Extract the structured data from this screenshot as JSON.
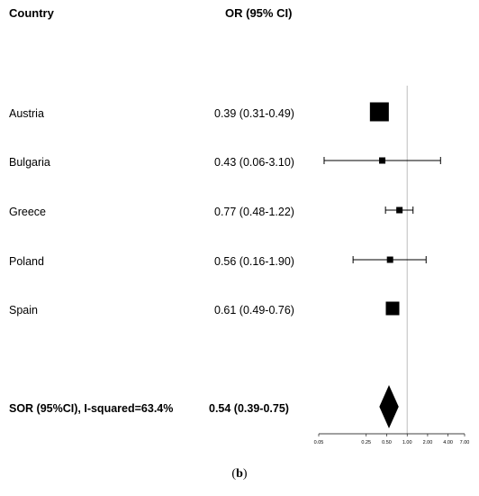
{
  "headers": {
    "country": "Country",
    "or": "OR (95% CI)"
  },
  "rows": [
    {
      "country": "Austria",
      "label": "0.39 (0.31-0.49)",
      "or": 0.39,
      "lo": 0.31,
      "hi": 0.49,
      "weight": "large"
    },
    {
      "country": "Bulgaria",
      "label": "0.43 (0.06-3.10)",
      "or": 0.43,
      "lo": 0.06,
      "hi": 3.1,
      "weight": "small"
    },
    {
      "country": "Greece",
      "label": "0.77 (0.48-1.22)",
      "or": 0.77,
      "lo": 0.48,
      "hi": 1.22,
      "weight": "small"
    },
    {
      "country": "Poland",
      "label": "0.56 (0.16-1.90)",
      "or": 0.56,
      "lo": 0.16,
      "hi": 1.9,
      "weight": "small"
    },
    {
      "country": "Spain",
      "label": "0.61 (0.49-0.76)",
      "or": 0.61,
      "lo": 0.49,
      "hi": 0.76,
      "weight": "medium"
    }
  ],
  "summary": {
    "label": "SOR (95%CI), I-squared=63.4%",
    "value_label": "0.54 (0.39-0.75)"
  },
  "caption": {
    "open": "(",
    "letter": "b",
    "close": ")"
  },
  "chart_data": {
    "type": "forest",
    "xscale": "log",
    "xlim": [
      0.05,
      7.0
    ],
    "xticks": [
      0.05,
      0.25,
      0.5,
      1.0,
      2.0,
      4.0,
      7.0
    ],
    "xtick_labels": [
      "0.05",
      "0.25",
      "0.50",
      "1.00",
      "2.00",
      "4.00",
      "7.00"
    ],
    "reference_line": 1.0,
    "studies": [
      {
        "name": "Austria",
        "or": 0.39,
        "lo": 0.31,
        "hi": 0.49
      },
      {
        "name": "Bulgaria",
        "or": 0.43,
        "lo": 0.06,
        "hi": 3.1
      },
      {
        "name": "Greece",
        "or": 0.77,
        "lo": 0.48,
        "hi": 1.22
      },
      {
        "name": "Poland",
        "or": 0.56,
        "lo": 0.16,
        "hi": 1.9
      },
      {
        "name": "Spain",
        "or": 0.61,
        "lo": 0.49,
        "hi": 0.76
      }
    ],
    "pooled": {
      "or": 0.54,
      "lo": 0.39,
      "hi": 0.75
    }
  }
}
